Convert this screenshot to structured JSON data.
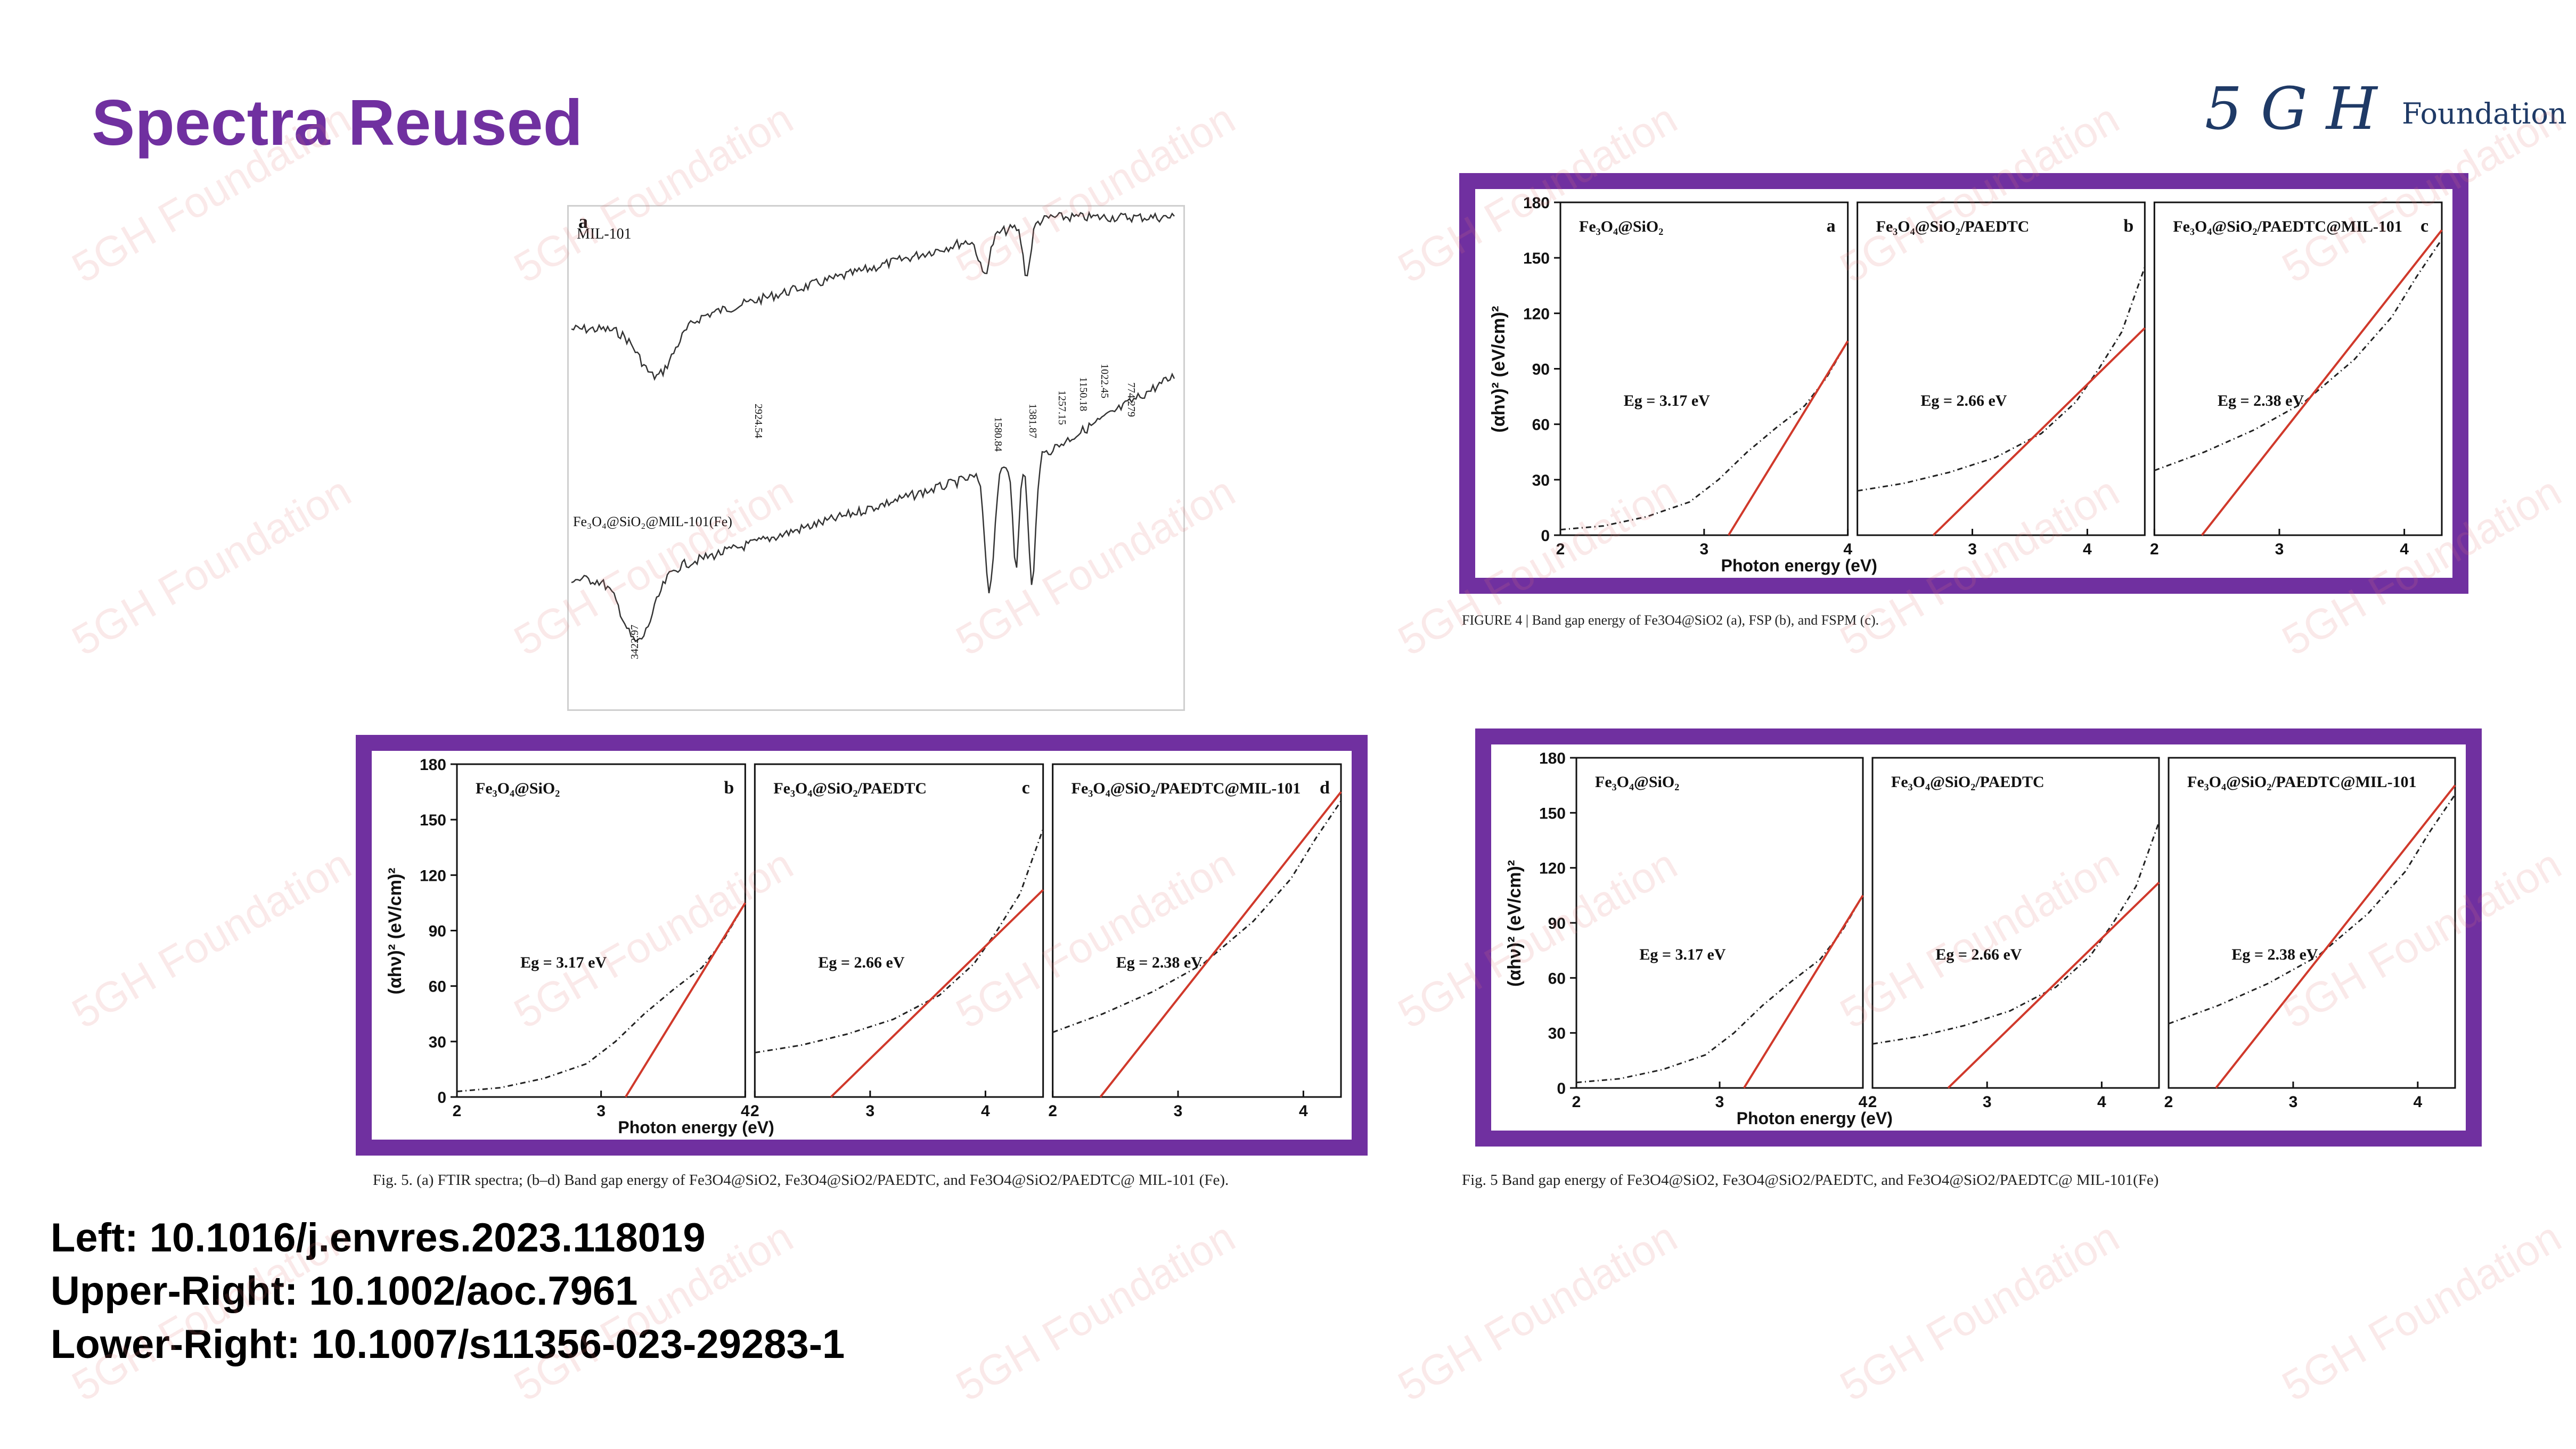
{
  "slide": {
    "title": "Spectra Reused",
    "logo_mark": "5 G H",
    "logo_text": "Foundation",
    "watermark_text": "5GH Foundation",
    "accent_color": "#7030a0"
  },
  "references": {
    "left": "Left: 10.1016/j.envres.2023.118019",
    "upper_right": "Upper-Right: 10.1002/aoc.7961",
    "lower_right": "Lower-Right: 10.1007/s11356-023-29283-1"
  },
  "captions": {
    "left": "Fig. 5.  (a) FTIR spectra; (b–d) Band gap energy of Fe3O4@SiO2, Fe3O4@SiO2/PAEDTC, and Fe3O4@SiO2/PAEDTC@ MIL-101 (Fe).",
    "upper_right": "FIGURE 4   |   Band gap energy of Fe3O4@SiO2 (a), FSP (b), and FSPM (c).",
    "lower_right": "Fig. 5  Band gap energy of Fe3O4@SiO2, Fe3O4@SiO2/PAEDTC, and Fe3O4@SiO2/PAEDTC@ MIL-101(Fe)"
  },
  "chart_data": [
    {
      "type": "line",
      "panel_label": "a",
      "description_labels": [
        "MIL-101",
        "Fe₃O₄@SiO₂@MIL-101(Fe)"
      ],
      "series": [
        {
          "name": "MIL-101",
          "peaks": [
            "2924.54",
            "1580.84",
            "1381.87",
            "1257.15",
            "1150.18",
            "1022.45",
            "774.279"
          ]
        },
        {
          "name": "Fe₃O₄@SiO₂@MIL-101(Fe)",
          "peaks": [
            "3422.97"
          ]
        }
      ]
    },
    {
      "type": "line",
      "source": "left",
      "ylabel": "(αhν)² (eV/cm)²",
      "xlabel": "Photon energy (eV)",
      "yticks": [
        0,
        30,
        60,
        90,
        120,
        150,
        180
      ],
      "panels": [
        {
          "label": "b",
          "name": "Fe₃O₄@SiO₂",
          "eg_label": "Eg = 3.17 eV",
          "eg": 3.17,
          "xlim": [
            2,
            4
          ],
          "xticks": [
            2,
            3,
            4
          ],
          "x": [
            2.0,
            2.3,
            2.6,
            2.9,
            3.1,
            3.3,
            3.5,
            3.7,
            3.85,
            4.0
          ],
          "y": [
            3,
            5,
            10,
            18,
            30,
            45,
            58,
            70,
            85,
            105
          ],
          "fit": [
            [
              3.17,
              0
            ],
            [
              4.0,
              105
            ]
          ]
        },
        {
          "label": "c",
          "name": "Fe₃O₄@SiO₂/PAEDTC",
          "eg_label": "Eg = 2.66 eV",
          "eg": 2.66,
          "xlim": [
            2,
            4.5
          ],
          "xticks": [
            2,
            3,
            4
          ],
          "x": [
            2.0,
            2.4,
            2.8,
            3.2,
            3.6,
            3.9,
            4.1,
            4.3,
            4.5
          ],
          "y": [
            24,
            28,
            34,
            42,
            55,
            72,
            90,
            110,
            145
          ],
          "fit": [
            [
              2.66,
              0
            ],
            [
              4.5,
              112
            ]
          ]
        },
        {
          "label": "d",
          "name": "Fe₃O₄@SiO₂/PAEDTC@MIL-101",
          "eg_label": "Eg = 2.38 eV",
          "eg": 2.38,
          "xlim": [
            2,
            4.3
          ],
          "xticks": [
            2,
            3,
            4
          ],
          "x": [
            2.0,
            2.4,
            2.8,
            3.2,
            3.6,
            3.9,
            4.1,
            4.3
          ],
          "y": [
            35,
            45,
            57,
            72,
            95,
            118,
            140,
            160
          ],
          "fit": [
            [
              2.38,
              0
            ],
            [
              4.3,
              165
            ]
          ]
        }
      ]
    },
    {
      "type": "line",
      "source": "upper-right",
      "ylabel": "(αhν)² (eV/cm)²",
      "xlabel": "Photon energy (eV)",
      "yticks": [
        0,
        30,
        60,
        90,
        120,
        150,
        180
      ],
      "panels": [
        {
          "label": "a",
          "name": "Fe₃O₄@SiO₂",
          "eg_label": "Eg = 3.17 eV",
          "eg": 3.17,
          "xlim": [
            2,
            4
          ],
          "xticks": [
            2,
            3,
            4
          ],
          "x": [
            2.0,
            2.3,
            2.6,
            2.9,
            3.1,
            3.3,
            3.5,
            3.7,
            3.85,
            4.0
          ],
          "y": [
            3,
            5,
            10,
            18,
            30,
            45,
            58,
            70,
            85,
            105
          ],
          "fit": [
            [
              3.17,
              0
            ],
            [
              4.0,
              105
            ]
          ]
        },
        {
          "label": "b",
          "name": "Fe₃O₄@SiO₂/PAEDTC",
          "eg_label": "Eg = 2.66 eV",
          "eg": 2.66,
          "xlim": [
            2,
            4.5
          ],
          "xticks": [
            3,
            4
          ],
          "x": [
            2.0,
            2.4,
            2.8,
            3.2,
            3.6,
            3.9,
            4.1,
            4.3,
            4.5
          ],
          "y": [
            24,
            28,
            34,
            42,
            55,
            72,
            90,
            110,
            145
          ],
          "fit": [
            [
              2.66,
              0
            ],
            [
              4.5,
              112
            ]
          ]
        },
        {
          "label": "c",
          "name": "Fe₃O₄@SiO₂/PAEDTC@MIL-101",
          "eg_label": "Eg = 2.38 eV",
          "eg": 2.38,
          "xlim": [
            2,
            4.3
          ],
          "xticks": [
            2,
            3,
            4
          ],
          "x": [
            2.0,
            2.4,
            2.8,
            3.2,
            3.6,
            3.9,
            4.1,
            4.3
          ],
          "y": [
            35,
            45,
            57,
            72,
            95,
            118,
            140,
            160
          ],
          "fit": [
            [
              2.38,
              0
            ],
            [
              4.3,
              165
            ]
          ]
        }
      ]
    },
    {
      "type": "line",
      "source": "lower-right",
      "ylabel": "(αhν)² (eV/cm)²",
      "xlabel": "Photon energy (eV)",
      "yticks": [
        0,
        30,
        60,
        90,
        120,
        150,
        180
      ],
      "panels": [
        {
          "label": "",
          "name": "Fe₃O₄@SiO₂",
          "eg_label": "Eg = 3.17 eV",
          "eg": 3.17,
          "xlim": [
            2,
            4
          ],
          "xticks": [
            2,
            3,
            4
          ],
          "x": [
            2.0,
            2.3,
            2.6,
            2.9,
            3.1,
            3.3,
            3.5,
            3.7,
            3.85,
            4.0
          ],
          "y": [
            3,
            5,
            10,
            18,
            30,
            45,
            58,
            70,
            85,
            105
          ],
          "fit": [
            [
              3.17,
              0
            ],
            [
              4.0,
              105
            ]
          ]
        },
        {
          "label": "",
          "name": "Fe₃O₄@SiO₂/PAEDTC",
          "eg_label": "Eg = 2.66 eV",
          "eg": 2.66,
          "xlim": [
            2,
            4.5
          ],
          "xticks": [
            2,
            3,
            4
          ],
          "x": [
            2.0,
            2.4,
            2.8,
            3.2,
            3.6,
            3.9,
            4.1,
            4.3,
            4.5
          ],
          "y": [
            24,
            28,
            34,
            42,
            55,
            72,
            90,
            110,
            145
          ],
          "fit": [
            [
              2.66,
              0
            ],
            [
              4.5,
              112
            ]
          ]
        },
        {
          "label": "",
          "name": "Fe₃O₄@SiO₂/PAEDTC@MIL-101",
          "eg_label": "Eg = 2.38 eV",
          "eg": 2.38,
          "xlim": [
            2,
            4.3
          ],
          "xticks": [
            2,
            3,
            4
          ],
          "x": [
            2.0,
            2.4,
            2.8,
            3.2,
            3.6,
            3.9,
            4.1,
            4.3
          ],
          "y": [
            35,
            45,
            57,
            72,
            95,
            118,
            140,
            160
          ],
          "fit": [
            [
              2.38,
              0
            ],
            [
              4.3,
              165
            ]
          ]
        }
      ]
    }
  ]
}
